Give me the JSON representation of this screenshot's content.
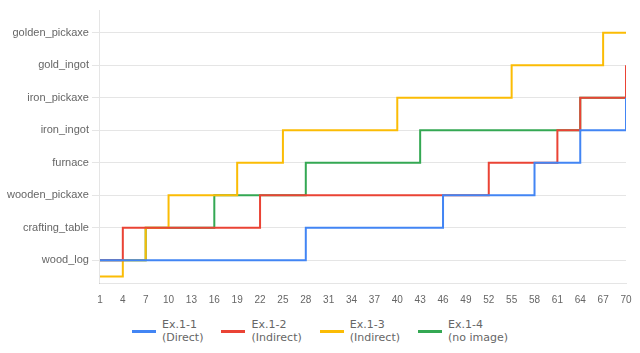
{
  "chart_data": {
    "type": "step",
    "x": [
      1,
      4,
      7,
      10,
      13,
      16,
      19,
      22,
      25,
      28,
      31,
      34,
      37,
      40,
      43,
      46,
      49,
      52,
      55,
      58,
      61,
      64,
      67,
      70
    ],
    "series": [
      {
        "name": "Ex.1-1\n(Direct)",
        "color": "#4285F4",
        "values": [
          1,
          1,
          1,
          1,
          1,
          1,
          1,
          1,
          1,
          2,
          2,
          2,
          2,
          2,
          2,
          3,
          3,
          3,
          3,
          4,
          4,
          5,
          5,
          6
        ]
      },
      {
        "name": "Ex.1-2\n(Indirect)",
        "color": "#EA4335",
        "values": [
          1,
          2,
          2,
          2,
          2,
          2,
          2,
          3,
          3,
          3,
          3,
          3,
          3,
          3,
          3,
          3,
          3,
          4,
          4,
          4,
          5,
          6,
          6,
          7
        ]
      },
      {
        "name": "Ex.1-3\n(Indirect)",
        "color": "#FBBC05",
        "values": [
          0.5,
          1,
          2,
          3,
          3,
          3,
          4,
          4,
          5,
          5,
          5,
          5,
          5,
          6,
          6,
          6,
          6,
          6,
          7,
          7,
          7,
          7,
          8,
          8
        ]
      },
      {
        "name": "Ex.1-4\n(no image)",
        "color": "#34A853",
        "values": [
          1,
          1,
          2,
          2,
          2,
          3,
          3,
          3,
          3,
          4,
          4,
          4,
          4,
          4,
          5,
          5,
          5,
          5,
          5,
          5,
          5,
          6,
          6,
          6
        ]
      }
    ],
    "xlim": [
      1,
      70
    ],
    "xticks": [
      1,
      4,
      7,
      10,
      13,
      16,
      19,
      22,
      25,
      28,
      31,
      34,
      37,
      40,
      43,
      46,
      49,
      52,
      55,
      58,
      61,
      64,
      67,
      70
    ],
    "ylim": [
      0.3,
      8.7
    ],
    "yticks": [
      {
        "value": 1,
        "label": "wood_log"
      },
      {
        "value": 2,
        "label": "crafting_table"
      },
      {
        "value": 3,
        "label": "wooden_pickaxe"
      },
      {
        "value": 4,
        "label": "furnace"
      },
      {
        "value": 5,
        "label": "iron_ingot"
      },
      {
        "value": 6,
        "label": "iron_pickaxe"
      },
      {
        "value": 7,
        "label": "gold_ingot"
      },
      {
        "value": 8,
        "label": "golden_pickaxe"
      }
    ],
    "grid": "y",
    "legend": "bottom"
  }
}
